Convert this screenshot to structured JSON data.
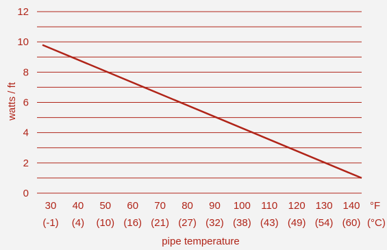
{
  "chart_data": {
    "type": "line",
    "title": "",
    "xlabel": "pipe temperature",
    "ylabel": "watts / ft",
    "x_unit_label": "°F",
    "x_alt_unit_label": "(°C)",
    "x": [
      30,
      40,
      50,
      60,
      70,
      80,
      90,
      100,
      110,
      120,
      130,
      140
    ],
    "x_tick_labels": [
      "30",
      "40",
      "50",
      "60",
      "70",
      "80",
      "90",
      "100",
      "110",
      "120",
      "130",
      "140"
    ],
    "x_alt_tick_labels": [
      "(-1)",
      "(4)",
      "(10)",
      "(16)",
      "(21)",
      "(27)",
      "(32)",
      "(38)",
      "(43)",
      "(49)",
      "(54)",
      "(60)"
    ],
    "y_ticks": [
      0,
      2,
      4,
      6,
      8,
      10,
      12
    ],
    "ylim": [
      0,
      12
    ],
    "xlim": [
      30,
      140
    ],
    "grid": "horizontal, every 1 unit",
    "series": [
      {
        "points": [
          [
            30,
            9.8
          ],
          [
            140,
            1.0
          ]
        ]
      }
    ],
    "colors": {
      "line": "#b02418",
      "grid": "#b02418",
      "text": "#b02418",
      "background": "#f3f3f3"
    }
  }
}
